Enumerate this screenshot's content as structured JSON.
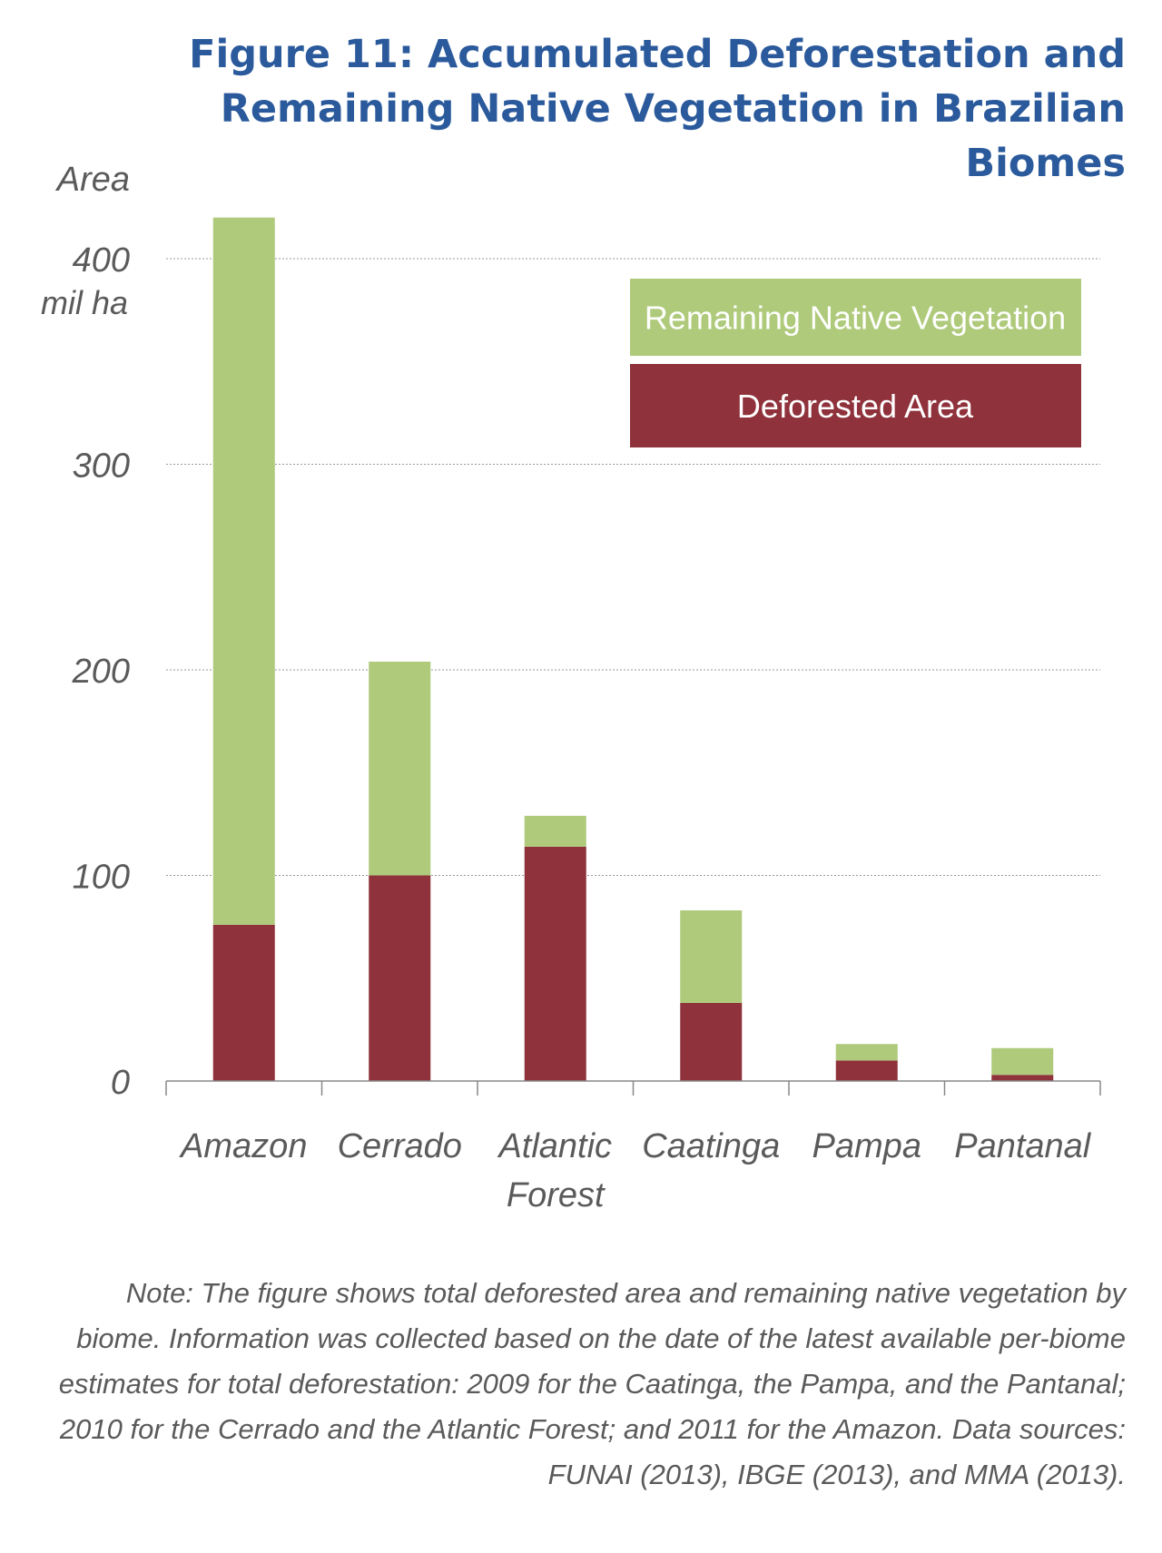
{
  "figure": {
    "title": "Figure 11: Accumulated Deforestation and Remaining Native Vegetation in Brazilian Biomes",
    "note": "Note: The figure shows total deforested area and remaining native vegetation by biome. Information was collected based on the date of the latest available per-biome estimates for total deforestation: 2009 for the Caatinga, the Pampa, and the Pantanal; 2010 for the Cerrado and the Atlantic Forest; and 2011 for the Amazon. Data sources: FUNAI (2013), IBGE (2013), and MMA (2013)."
  },
  "chart_data": {
    "type": "bar",
    "stacked": true,
    "title": "Figure 11: Accumulated Deforestation and Remaining Native Vegetation in Brazilian Biomes",
    "ylabel": "Area",
    "yunit": "mil ha",
    "yticks": [
      0,
      100,
      200,
      300,
      400
    ],
    "ytick_label_400": "400 mil ha",
    "ylim": [
      0,
      420
    ],
    "grid": true,
    "legend_position": "top-right",
    "categories": [
      "Amazon",
      "Cerrado",
      "Atlantic Forest",
      "Caatinga",
      "Pampa",
      "Pantanal"
    ],
    "category_lines": [
      [
        "Amazon"
      ],
      [
        "Cerrado"
      ],
      [
        "Atlantic",
        "Forest"
      ],
      [
        "Caatinga"
      ],
      [
        "Pampa"
      ],
      [
        "Pantanal"
      ]
    ],
    "series": [
      {
        "name": "Deforested Area",
        "color": "#8f323b",
        "values": [
          76,
          100,
          114,
          38,
          10,
          3
        ]
      },
      {
        "name": "Remaining Native Vegetation",
        "color": "#aeca7a",
        "values": [
          344,
          104,
          15,
          45,
          8,
          13
        ]
      }
    ]
  }
}
